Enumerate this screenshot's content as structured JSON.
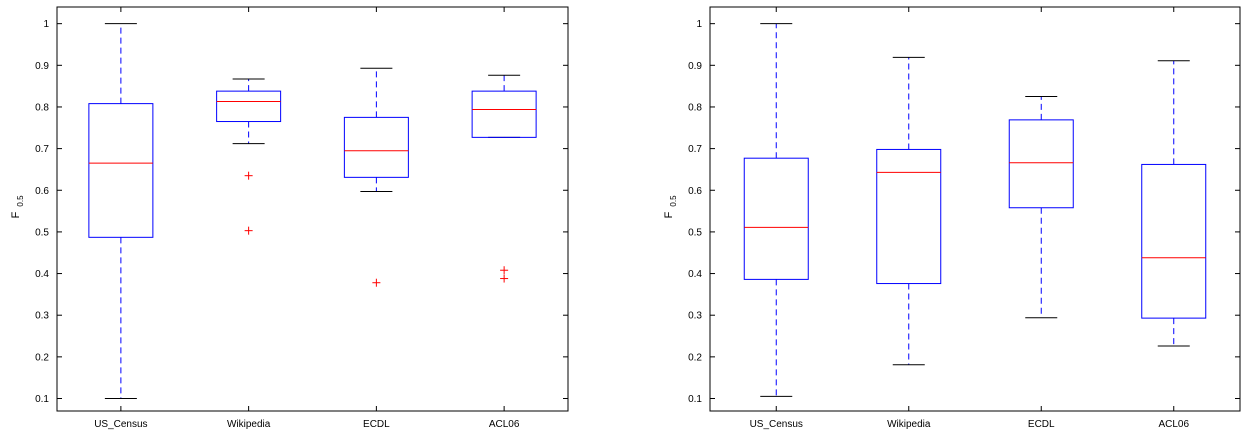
{
  "chart_data": [
    {
      "type": "box",
      "ylabel_base": "F",
      "ylabel_sub": "0.5",
      "categories": [
        "US_Census",
        "Wikipedia",
        "ECDL",
        "ACL06"
      ],
      "yticks": [
        "0.1",
        "0.2",
        "0.3",
        "0.4",
        "0.5",
        "0.6",
        "0.7",
        "0.8",
        "0.9",
        "1"
      ],
      "ylim": [
        0.07,
        1.04
      ],
      "grid": false,
      "colors": {
        "box": "#0000ff",
        "median": "#ff0000",
        "whisker_cap": "#000000",
        "outlier": "#ff0000"
      },
      "boxes": [
        {
          "category": "US_Census",
          "whisker_low": 0.1,
          "q1": 0.487,
          "median": 0.665,
          "q3": 0.808,
          "whisker_high": 1.0,
          "outliers": []
        },
        {
          "category": "Wikipedia",
          "whisker_low": 0.712,
          "q1": 0.765,
          "median": 0.813,
          "q3": 0.838,
          "whisker_high": 0.867,
          "outliers": [
            0.635,
            0.503
          ]
        },
        {
          "category": "ECDL",
          "whisker_low": 0.597,
          "q1": 0.631,
          "median": 0.695,
          "q3": 0.775,
          "whisker_high": 0.893,
          "outliers": [
            0.378
          ]
        },
        {
          "category": "ACL06",
          "whisker_low": 0.727,
          "q1": 0.727,
          "median": 0.794,
          "q3": 0.838,
          "whisker_high": 0.876,
          "outliers": [
            0.408,
            0.388
          ]
        }
      ]
    },
    {
      "type": "box",
      "ylabel_base": "F",
      "ylabel_sub": "0.5",
      "categories": [
        "US_Census",
        "Wikipedia",
        "ECDL",
        "ACL06"
      ],
      "yticks": [
        "0.1",
        "0.2",
        "0.3",
        "0.4",
        "0.5",
        "0.6",
        "0.7",
        "0.8",
        "0.9",
        "1"
      ],
      "ylim": [
        0.07,
        1.04
      ],
      "grid": false,
      "colors": {
        "box": "#0000ff",
        "median": "#ff0000",
        "whisker_cap": "#000000",
        "outlier": "#ff0000"
      },
      "boxes": [
        {
          "category": "US_Census",
          "whisker_low": 0.105,
          "q1": 0.386,
          "median": 0.511,
          "q3": 0.677,
          "whisker_high": 1.0,
          "outliers": []
        },
        {
          "category": "Wikipedia",
          "whisker_low": 0.181,
          "q1": 0.376,
          "median": 0.643,
          "q3": 0.698,
          "whisker_high": 0.919,
          "outliers": []
        },
        {
          "category": "ECDL",
          "whisker_low": 0.294,
          "q1": 0.558,
          "median": 0.666,
          "q3": 0.769,
          "whisker_high": 0.825,
          "outliers": []
        },
        {
          "category": "ACL06",
          "whisker_low": 0.226,
          "q1": 0.293,
          "median": 0.438,
          "q3": 0.662,
          "whisker_high": 0.911,
          "outliers": []
        }
      ]
    }
  ]
}
